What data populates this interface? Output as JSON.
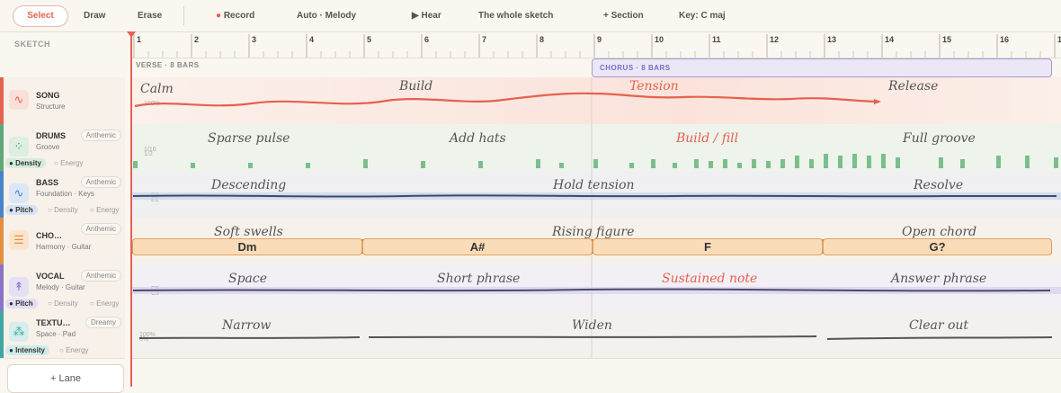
{
  "toolbar": {
    "select": "Select",
    "draw": "Draw",
    "erase": "Erase",
    "record": "Record",
    "auto": "Auto · Melody",
    "hear": "Hear",
    "scope": "The whole sketch",
    "add_section": "+ Section",
    "key": "Key: C maj"
  },
  "sketch_label": "SKETCH",
  "ruler": {
    "bars": [
      "1",
      "2",
      "3",
      "4",
      "5",
      "6",
      "7",
      "8",
      "9",
      "10",
      "11",
      "12",
      "13",
      "14",
      "15",
      "16",
      "1"
    ]
  },
  "sections": {
    "verse": "VERSE · 8 BARS",
    "chorus": "CHORUS · 8 BARS"
  },
  "lanes": [
    {
      "name": "SONG",
      "sub": "Structure",
      "color": "#e4624f"
    },
    {
      "name": "DRUMS",
      "sub": "Groove",
      "pill": "Anthemic",
      "mode_on": "Density",
      "mode_off": "Energy",
      "color": "#5fa87a"
    },
    {
      "name": "BASS",
      "sub": "Foundation · Keys",
      "pill": "Anthemic",
      "mode_on": "Pitch",
      "mode_off1": "Density",
      "mode_off2": "Energy",
      "color": "#4a84c8"
    },
    {
      "name": "CHO…",
      "sub": "Harmony · Guitar",
      "pill": "Anthemic",
      "color": "#e49040"
    },
    {
      "name": "VOCAL",
      "sub": "Melody · Guitar",
      "pill": "Anthemic",
      "mode_on": "Pitch",
      "mode_off1": "Density",
      "mode_off2": "Energy",
      "color": "#8a74c8"
    },
    {
      "name": "TEXTU…",
      "sub": "Space · Pad",
      "pill": "Dreamy",
      "mode_on": "Intensity",
      "mode_off": "Energy",
      "color": "#3fa8a0"
    }
  ],
  "song_labels": [
    "Calm",
    "Build",
    "Tension",
    "Release"
  ],
  "drums_labels": [
    "Sparse pulse",
    "Add hats",
    "Build / fill",
    "Full groove"
  ],
  "bass_labels": [
    "Descending",
    "Hold tension",
    "Resolve"
  ],
  "chords_labels": [
    "Soft swells",
    "Rising figure",
    "Open chord"
  ],
  "chords": [
    "Dm",
    "A#",
    "F",
    "G?"
  ],
  "vocal_labels": [
    "Space",
    "Short phrase",
    "Sustained note",
    "Answer phrase"
  ],
  "texture_labels": [
    "Narrow",
    "Widen",
    "Clear out"
  ],
  "axis_marks": {
    "song": "100%",
    "drums_top": "1/16",
    "drums_bot": "1/2",
    "bass_top": "C3",
    "bass_bot": "E1",
    "vocal_top": "D5",
    "vocal_bot": "C3",
    "tex_top": "100%",
    "tex_bot": "0%"
  },
  "add_lane": "+ Lane",
  "accent_color": "#e4624f"
}
